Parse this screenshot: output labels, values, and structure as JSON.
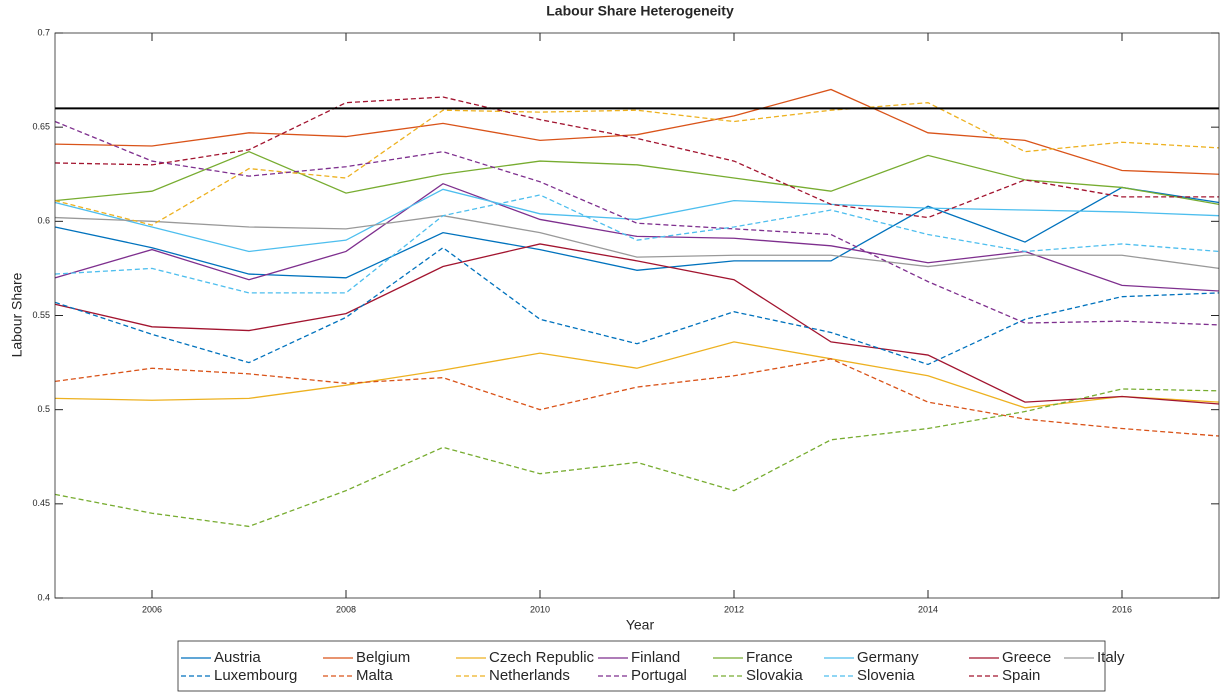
{
  "chart_data": {
    "type": "line",
    "title": "Labour Share Heterogeneity",
    "x_label": "Year",
    "y_label": "Labour Share",
    "x": [
      2005,
      2006,
      2007,
      2008,
      2009,
      2010,
      2011,
      2012,
      2013,
      2014,
      2015,
      2016,
      2017
    ],
    "xlim": [
      2005,
      2017
    ],
    "xticks": [
      2006,
      2008,
      2010,
      2012,
      2014,
      2016
    ],
    "ylim": [
      0.4,
      0.7
    ],
    "yticks": [
      0.4,
      0.45,
      0.5,
      0.55,
      0.6,
      0.65,
      0.7
    ],
    "reference_line": {
      "value": 0.66,
      "color": "#000000"
    },
    "legend": "bottom",
    "series": [
      {
        "name": "Austria",
        "color": "#0072BD",
        "dash": "solid",
        "values": [
          0.597,
          0.586,
          0.572,
          0.57,
          0.594,
          0.585,
          0.574,
          0.579,
          0.579,
          0.608,
          0.589,
          0.618,
          0.61
        ]
      },
      {
        "name": "Belgium",
        "color": "#D95319",
        "dash": "solid",
        "values": [
          0.641,
          0.64,
          0.647,
          0.645,
          0.652,
          0.643,
          0.646,
          0.656,
          0.67,
          0.647,
          0.643,
          0.627,
          0.625
        ]
      },
      {
        "name": "Czech Republic",
        "color": "#EDB120",
        "dash": "solid",
        "values": [
          0.506,
          0.505,
          0.506,
          0.513,
          0.521,
          0.53,
          0.522,
          0.536,
          0.527,
          0.518,
          0.501,
          0.507,
          0.504
        ]
      },
      {
        "name": "Finland",
        "color": "#7E2F8E",
        "dash": "solid",
        "values": [
          0.57,
          0.585,
          0.569,
          0.584,
          0.62,
          0.601,
          0.592,
          0.591,
          0.587,
          0.578,
          0.584,
          0.566,
          0.563
        ]
      },
      {
        "name": "France",
        "color": "#77AC30",
        "dash": "solid",
        "values": [
          0.611,
          0.616,
          0.637,
          0.615,
          0.625,
          0.632,
          0.63,
          0.623,
          0.616,
          0.635,
          0.622,
          0.618,
          0.609
        ]
      },
      {
        "name": "Germany",
        "color": "#4DBEEE",
        "dash": "solid",
        "values": [
          0.61,
          0.597,
          0.584,
          0.59,
          0.617,
          0.604,
          0.601,
          0.611,
          0.609,
          0.607,
          0.606,
          0.605,
          0.603
        ]
      },
      {
        "name": "Greece",
        "color": "#A2142F",
        "dash": "solid",
        "values": [
          0.556,
          0.544,
          0.542,
          0.551,
          0.576,
          0.588,
          0.579,
          0.569,
          0.536,
          0.529,
          0.504,
          0.507,
          0.503
        ]
      },
      {
        "name": "Italy",
        "color": "#999999",
        "dash": "solid",
        "values": [
          0.602,
          0.6,
          0.597,
          0.596,
          0.603,
          0.594,
          0.581,
          0.582,
          0.582,
          0.576,
          0.582,
          0.582,
          0.575
        ]
      },
      {
        "name": "Luxembourg",
        "color": "#0072BD",
        "dash": "dashed",
        "values": [
          0.557,
          0.54,
          0.525,
          0.549,
          0.586,
          0.548,
          0.535,
          0.552,
          0.541,
          0.524,
          0.548,
          0.56,
          0.562
        ]
      },
      {
        "name": "Malta",
        "color": "#D95319",
        "dash": "dashed",
        "values": [
          0.515,
          0.522,
          0.519,
          0.514,
          0.517,
          0.5,
          0.512,
          0.518,
          0.527,
          0.504,
          0.495,
          0.49,
          0.486
        ]
      },
      {
        "name": "Netherlands",
        "color": "#EDB120",
        "dash": "dashed",
        "values": [
          0.611,
          0.598,
          0.628,
          0.623,
          0.659,
          0.658,
          0.659,
          0.653,
          0.659,
          0.663,
          0.637,
          0.642,
          0.639
        ]
      },
      {
        "name": "Portugal",
        "color": "#7E2F8E",
        "dash": "dashed",
        "values": [
          0.653,
          0.632,
          0.624,
          0.629,
          0.637,
          0.621,
          0.599,
          0.596,
          0.593,
          0.568,
          0.546,
          0.547,
          0.545
        ]
      },
      {
        "name": "Slovakia",
        "color": "#77AC30",
        "dash": "dashed",
        "values": [
          0.455,
          0.445,
          0.438,
          0.457,
          0.48,
          0.466,
          0.472,
          0.457,
          0.484,
          0.49,
          0.499,
          0.511,
          0.51
        ]
      },
      {
        "name": "Slovenia",
        "color": "#4DBEEE",
        "dash": "dashed",
        "values": [
          0.572,
          0.575,
          0.562,
          0.562,
          0.603,
          0.614,
          0.59,
          0.597,
          0.606,
          0.593,
          0.584,
          0.588,
          0.584
        ]
      },
      {
        "name": "Spain",
        "color": "#A2142F",
        "dash": "dashed",
        "values": [
          0.631,
          0.63,
          0.638,
          0.663,
          0.666,
          0.654,
          0.644,
          0.632,
          0.609,
          0.602,
          0.622,
          0.613,
          0.613
        ]
      }
    ]
  }
}
